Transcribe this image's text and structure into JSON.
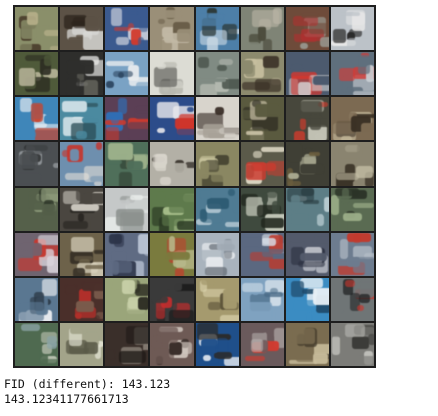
{
  "output": {
    "line1": "FID (different): 143.123",
    "line2": "143.12341177661713"
  },
  "image_grid": {
    "rows": 8,
    "cols": 8,
    "tiles": [
      {
        "bg": "#8a8f6a",
        "c1": "#3c2b1e",
        "c2": "#b7b08a"
      },
      {
        "bg": "#5c5246",
        "c1": "#d9d9d6",
        "c2": "#2c241c"
      },
      {
        "bg": "#3b5a8f",
        "c1": "#d33a2c",
        "c2": "#e6e6ea"
      },
      {
        "bg": "#9a8f78",
        "c1": "#6a5e49",
        "c2": "#c2b9a5"
      },
      {
        "bg": "#4d7fa8",
        "c1": "#c9d8e4",
        "c2": "#2d3a3a"
      },
      {
        "bg": "#7f8476",
        "c1": "#b8b3a4",
        "c2": "#4b4b3c"
      },
      {
        "bg": "#6e4b3a",
        "c1": "#b32f2f",
        "c2": "#9a9a92"
      },
      {
        "bg": "#bcc2c8",
        "c1": "#2a2a2a",
        "c2": "#e7e7e7"
      },
      {
        "bg": "#4f5a3a",
        "c1": "#c8c2a8",
        "c2": "#2b2b21"
      },
      {
        "bg": "#2e2e2c",
        "c1": "#e8e8e6",
        "c2": "#6b6b62"
      },
      {
        "bg": "#7aa2c4",
        "c1": "#e9ecef",
        "c2": "#2d4661"
      },
      {
        "bg": "#dcdcd4",
        "c1": "#6b6b66",
        "c2": "#b9b9b0"
      },
      {
        "bg": "#808b83",
        "c1": "#b4b9b0",
        "c2": "#4b554d"
      },
      {
        "bg": "#8c8a6e",
        "c1": "#3a3026",
        "c2": "#c8c0a0"
      },
      {
        "bg": "#4c5a6e",
        "c1": "#e0352a",
        "c2": "#d7d7d7"
      },
      {
        "bg": "#5f6f7d",
        "c1": "#c9cfd4",
        "c2": "#d43b36"
      },
      {
        "bg": "#3f86b9",
        "c1": "#eef2f6",
        "c2": "#c7452f"
      },
      {
        "bg": "#4b8aa0",
        "c1": "#cfe0e6",
        "c2": "#2b4d57"
      },
      {
        "bg": "#5b3f55",
        "c1": "#2f6fb7",
        "c2": "#cc3a2e"
      },
      {
        "bg": "#2c4c8a",
        "c1": "#e8e8ec",
        "c2": "#d2352a"
      },
      {
        "bg": "#d8d4cc",
        "c1": "#3a2f28",
        "c2": "#a8a298"
      },
      {
        "bg": "#5a5a3f",
        "c1": "#d4cbb0",
        "c2": "#2c2a21"
      },
      {
        "bg": "#47473c",
        "c1": "#c2c2b4",
        "c2": "#d83b2c"
      },
      {
        "bg": "#7c6a52",
        "c1": "#bfb396",
        "c2": "#3a3024"
      },
      {
        "bg": "#4b4f52",
        "c1": "#9ba0a4",
        "c2": "#2a2c2d"
      },
      {
        "bg": "#6e8fae",
        "c1": "#e9e3da",
        "c2": "#c7352c"
      },
      {
        "bg": "#4f6f5a",
        "c1": "#9bb08a",
        "c2": "#2d3a2e"
      },
      {
        "bg": "#b3b0a6",
        "c1": "#2c2620",
        "c2": "#dcd8cf"
      },
      {
        "bg": "#8a8762",
        "c1": "#c7c39c",
        "c2": "#4a4834"
      },
      {
        "bg": "#5b5a4a",
        "c1": "#e6e0cc",
        "c2": "#cc3b2f"
      },
      {
        "bg": "#3f3f35",
        "c1": "#a8a88f",
        "c2": "#6b5e3e"
      },
      {
        "bg": "#8a8470",
        "c1": "#3b3428",
        "c2": "#c4bea5"
      },
      {
        "bg": "#55604a",
        "c1": "#8d9a7a",
        "c2": "#2b3326"
      },
      {
        "bg": "#4a4640",
        "c1": "#cfcbc2",
        "c2": "#2b2824"
      },
      {
        "bg": "#c5c8c8",
        "c1": "#e8ecea",
        "c2": "#8a8f8c"
      },
      {
        "bg": "#5e7a4c",
        "c1": "#a9c08c",
        "c2": "#2b3a24"
      },
      {
        "bg": "#4f7b93",
        "c1": "#2c5a72",
        "c2": "#b8ccd6"
      },
      {
        "bg": "#3f4a3e",
        "c1": "#cfd3c4",
        "c2": "#22281f"
      },
      {
        "bg": "#5d7e86",
        "c1": "#b7cbd0",
        "c2": "#2a3d42"
      },
      {
        "bg": "#5a6b52",
        "c1": "#2b3327",
        "c2": "#9db08a"
      },
      {
        "bg": "#6f6470",
        "c1": "#c53a32",
        "c2": "#d9d4dc"
      },
      {
        "bg": "#6d624a",
        "c1": "#d9d2bd",
        "c2": "#3a3328"
      },
      {
        "bg": "#5f6b83",
        "c1": "#b8c2d3",
        "c2": "#2d354a"
      },
      {
        "bg": "#7a7b3e",
        "c1": "#c53a2c",
        "c2": "#b7b88a"
      },
      {
        "bg": "#a9b3bd",
        "c1": "#e9ecef",
        "c2": "#6b737c"
      },
      {
        "bg": "#5b6880",
        "c1": "#d8dfe8",
        "c2": "#c0392b"
      },
      {
        "bg": "#535a6b",
        "c1": "#d6d8de",
        "c2": "#2b3040"
      },
      {
        "bg": "#6d7c8f",
        "c1": "#c33a2d",
        "c2": "#b3bcc6"
      },
      {
        "bg": "#5a7791",
        "c1": "#e6eaee",
        "c2": "#2c3a48"
      },
      {
        "bg": "#4a2f2a",
        "c1": "#b5302a",
        "c2": "#7a5b4c"
      },
      {
        "bg": "#9aa57a",
        "c1": "#2c2c22",
        "c2": "#c8d0a8"
      },
      {
        "bg": "#3a3a3a",
        "c1": "#c42d2d",
        "c2": "#1e1e1e"
      },
      {
        "bg": "#a59a6e",
        "c1": "#d7cfa8",
        "c2": "#5b5238"
      },
      {
        "bg": "#7fa2c0",
        "c1": "#d8e3ec",
        "c2": "#4b6c88"
      },
      {
        "bg": "#3b8cc2",
        "c1": "#e8f0f6",
        "c2": "#1f4a6b"
      },
      {
        "bg": "#6f7576",
        "c1": "#c8352c",
        "c2": "#1f2122"
      },
      {
        "bg": "#4f6a50",
        "c1": "#c7ccbc",
        "c2": "#8aa3a4"
      },
      {
        "bg": "#a3a48a",
        "c1": "#e2e2d2",
        "c2": "#5a5a48"
      },
      {
        "bg": "#3a2f2a",
        "c1": "#8a8278",
        "c2": "#1f1a17"
      },
      {
        "bg": "#6e5a55",
        "c1": "#d0c6be",
        "c2": "#3a2e2a"
      },
      {
        "bg": "#1f4f8a",
        "c1": "#e7ecf2",
        "c2": "#2b2b2b"
      },
      {
        "bg": "#6a5a5c",
        "c1": "#d23a2f",
        "c2": "#b7b0ae"
      },
      {
        "bg": "#7a6c50",
        "c1": "#c9bd9c",
        "c2": "#3c3426"
      },
      {
        "bg": "#7c7c78",
        "c1": "#bdbdb8",
        "c2": "#3b3b38"
      }
    ]
  }
}
